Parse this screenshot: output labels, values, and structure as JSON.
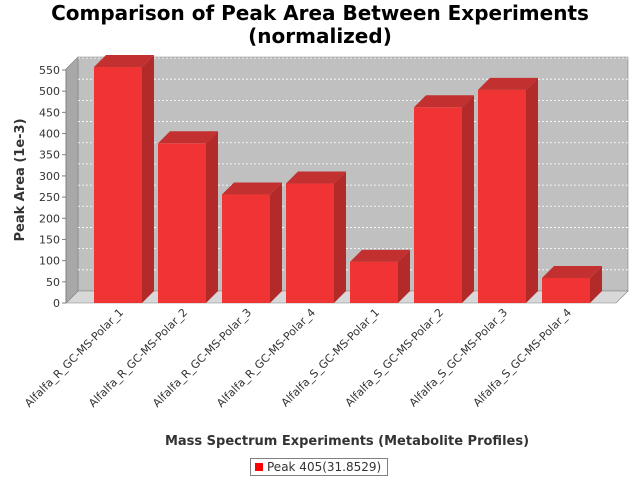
{
  "chart_data": {
    "type": "bar",
    "title": "Comparison of Peak Area Between Experiments",
    "subtitle": "(normalized)",
    "xlabel": "Mass Spectrum Experiments (Metabolite Profiles)",
    "ylabel": "Peak Area (1e-3)",
    "categories": [
      "Alfalfa_R_GC-MS-Polar_1",
      "Alfalfa_R_GC-MS-Polar_2",
      "Alfalfa_R_GC-MS-Polar_3",
      "Alfalfa_R_GC-MS-Polar_4",
      "Alfalfa_S_GC-MS-Polar_1",
      "Alfalfa_S_GC-MS-Polar_2",
      "Alfalfa_S_GC-MS-Polar_3",
      "Alfalfa_S_GC-MS-Polar_4"
    ],
    "series": [
      {
        "name": "Peak 405(31.8529)",
        "values": [
          557,
          377,
          256,
          282,
          97,
          462,
          503,
          59
        ]
      }
    ],
    "ylim": [
      0,
      570
    ],
    "yticks": [
      0,
      50,
      100,
      150,
      200,
      250,
      300,
      350,
      400,
      450,
      500,
      550
    ],
    "grid": true,
    "legend_position": "bottom",
    "colors": {
      "bar": "#ff0000",
      "plot_background": "#c0c0c0"
    }
  }
}
